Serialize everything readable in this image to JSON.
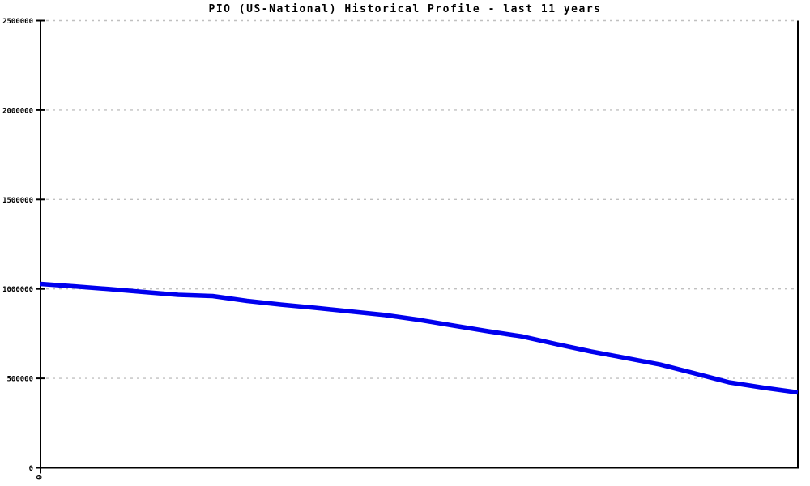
{
  "chart": {
    "title": "PIO (US-National) Historical Profile - last 11 years",
    "colors": {
      "line": "#0000ee",
      "grid": "#c0c0c0",
      "axis": "#000000",
      "text": "#000000",
      "background": "#ffffff"
    }
  },
  "chart_data": {
    "type": "line",
    "title": "PIO (US-National) Historical Profile - last 11 years",
    "xlabel": "",
    "ylabel": "",
    "legend": "none",
    "grid": "horizontal-dashed",
    "xlim": [
      0,
      11
    ],
    "ylim": [
      0,
      2500000
    ],
    "y_ticks": [
      0,
      500000,
      1000000,
      1500000,
      2000000,
      2500000
    ],
    "y_tick_labels": [
      "0",
      "500000",
      "1000000",
      "1500000",
      "2000000",
      "2500000"
    ],
    "x_ticks": [
      0
    ],
    "x_tick_labels": [
      "0"
    ],
    "series_name": "PIO (US-National)",
    "x": [
      0,
      0.5,
      1,
      1.5,
      2,
      2.5,
      3,
      3.5,
      4,
      4.5,
      5,
      5.5,
      6,
      6.5,
      7,
      7.5,
      8,
      8.5,
      9,
      9.5,
      10,
      10.5,
      11
    ],
    "values": [
      1028000,
      1014000,
      999000,
      983000,
      967000,
      960000,
      933000,
      912000,
      894000,
      874000,
      854000,
      827000,
      795000,
      763000,
      734000,
      691000,
      650000,
      614000,
      577000,
      528000,
      478000,
      448000,
      421000
    ]
  }
}
